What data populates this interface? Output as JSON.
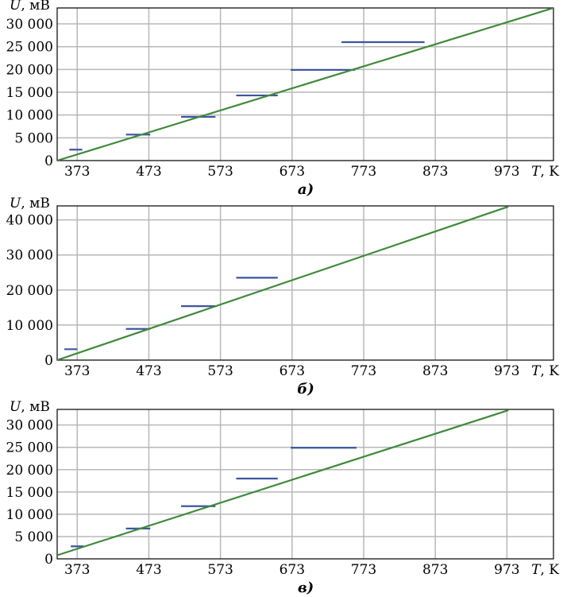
{
  "chart_data": [
    {
      "type": "line",
      "caption": "а)",
      "xlabel": "T, K",
      "ylabel": "U, мВ",
      "xlim": [
        345,
        1038
      ],
      "ylim": [
        0,
        33500
      ],
      "x_ticks": [
        373,
        473,
        573,
        673,
        773,
        873,
        973
      ],
      "x_tick_labels": [
        "373",
        "473",
        "573",
        "673",
        "773",
        "873",
        "973"
      ],
      "y_ticks": [
        0,
        5000,
        10000,
        15000,
        20000,
        25000,
        30000
      ],
      "y_tick_labels": [
        "0",
        "5 000",
        "10 000",
        "15 000",
        "20 000",
        "25 000",
        "30 000"
      ],
      "grid": true,
      "series": [
        {
          "type": "segments",
          "segments": [
            {
              "x1": 362,
              "x2": 380,
              "y": 2400
            },
            {
              "x1": 441,
              "x2": 475,
              "y": 5700
            },
            {
              "x1": 518,
              "x2": 566,
              "y": 9600
            },
            {
              "x1": 595,
              "x2": 653,
              "y": 14300
            },
            {
              "x1": 671,
              "x2": 761,
              "y": 19900
            },
            {
              "x1": 742,
              "x2": 858,
              "y": 26000
            }
          ]
        },
        {
          "type": "line",
          "x": [
            345,
            1038
          ],
          "y": [
            0,
            33500
          ]
        }
      ]
    },
    {
      "type": "line",
      "caption": "б)",
      "xlabel": "T, K",
      "ylabel": "U, мВ",
      "xlim": [
        345,
        1038
      ],
      "ylim": [
        0,
        44000
      ],
      "x_ticks": [
        373,
        473,
        573,
        673,
        773,
        873,
        973
      ],
      "x_tick_labels": [
        "373",
        "473",
        "573",
        "673",
        "773",
        "873",
        "973"
      ],
      "y_ticks": [
        0,
        10000,
        20000,
        30000,
        40000
      ],
      "y_tick_labels": [
        "0",
        "10 000",
        "20 000",
        "30 000",
        "40 000"
      ],
      "grid": true,
      "series": [
        {
          "type": "segments",
          "segments": [
            {
              "x1": 355,
              "x2": 373,
              "y": 3100
            },
            {
              "x1": 441,
              "x2": 475,
              "y": 8900
            },
            {
              "x1": 518,
              "x2": 566,
              "y": 15400
            },
            {
              "x1": 595,
              "x2": 653,
              "y": 23500
            }
          ]
        },
        {
          "type": "line",
          "x": [
            345,
            975
          ],
          "y": [
            0,
            43800
          ]
        }
      ]
    },
    {
      "type": "line",
      "caption": "в)",
      "xlabel": "T, K",
      "ylabel": "U, мВ",
      "xlim": [
        345,
        1038
      ],
      "ylim": [
        0,
        33500
      ],
      "x_ticks": [
        373,
        473,
        573,
        673,
        773,
        873,
        973
      ],
      "x_tick_labels": [
        "373",
        "473",
        "573",
        "673",
        "773",
        "873",
        "973"
      ],
      "y_ticks": [
        0,
        5000,
        10000,
        15000,
        20000,
        25000,
        30000
      ],
      "y_tick_labels": [
        "0",
        "5 000",
        "10 000",
        "15 000",
        "20 000",
        "25 000",
        "30 000"
      ],
      "grid": true,
      "series": [
        {
          "type": "segments",
          "segments": [
            {
              "x1": 364,
              "x2": 382,
              "y": 2800
            },
            {
              "x1": 441,
              "x2": 475,
              "y": 6800
            },
            {
              "x1": 518,
              "x2": 566,
              "y": 11800
            },
            {
              "x1": 595,
              "x2": 653,
              "y": 18000
            },
            {
              "x1": 671,
              "x2": 763,
              "y": 24900
            }
          ]
        },
        {
          "type": "line",
          "x": [
            345,
            975
          ],
          "y": [
            800,
            33300
          ]
        }
      ]
    }
  ]
}
